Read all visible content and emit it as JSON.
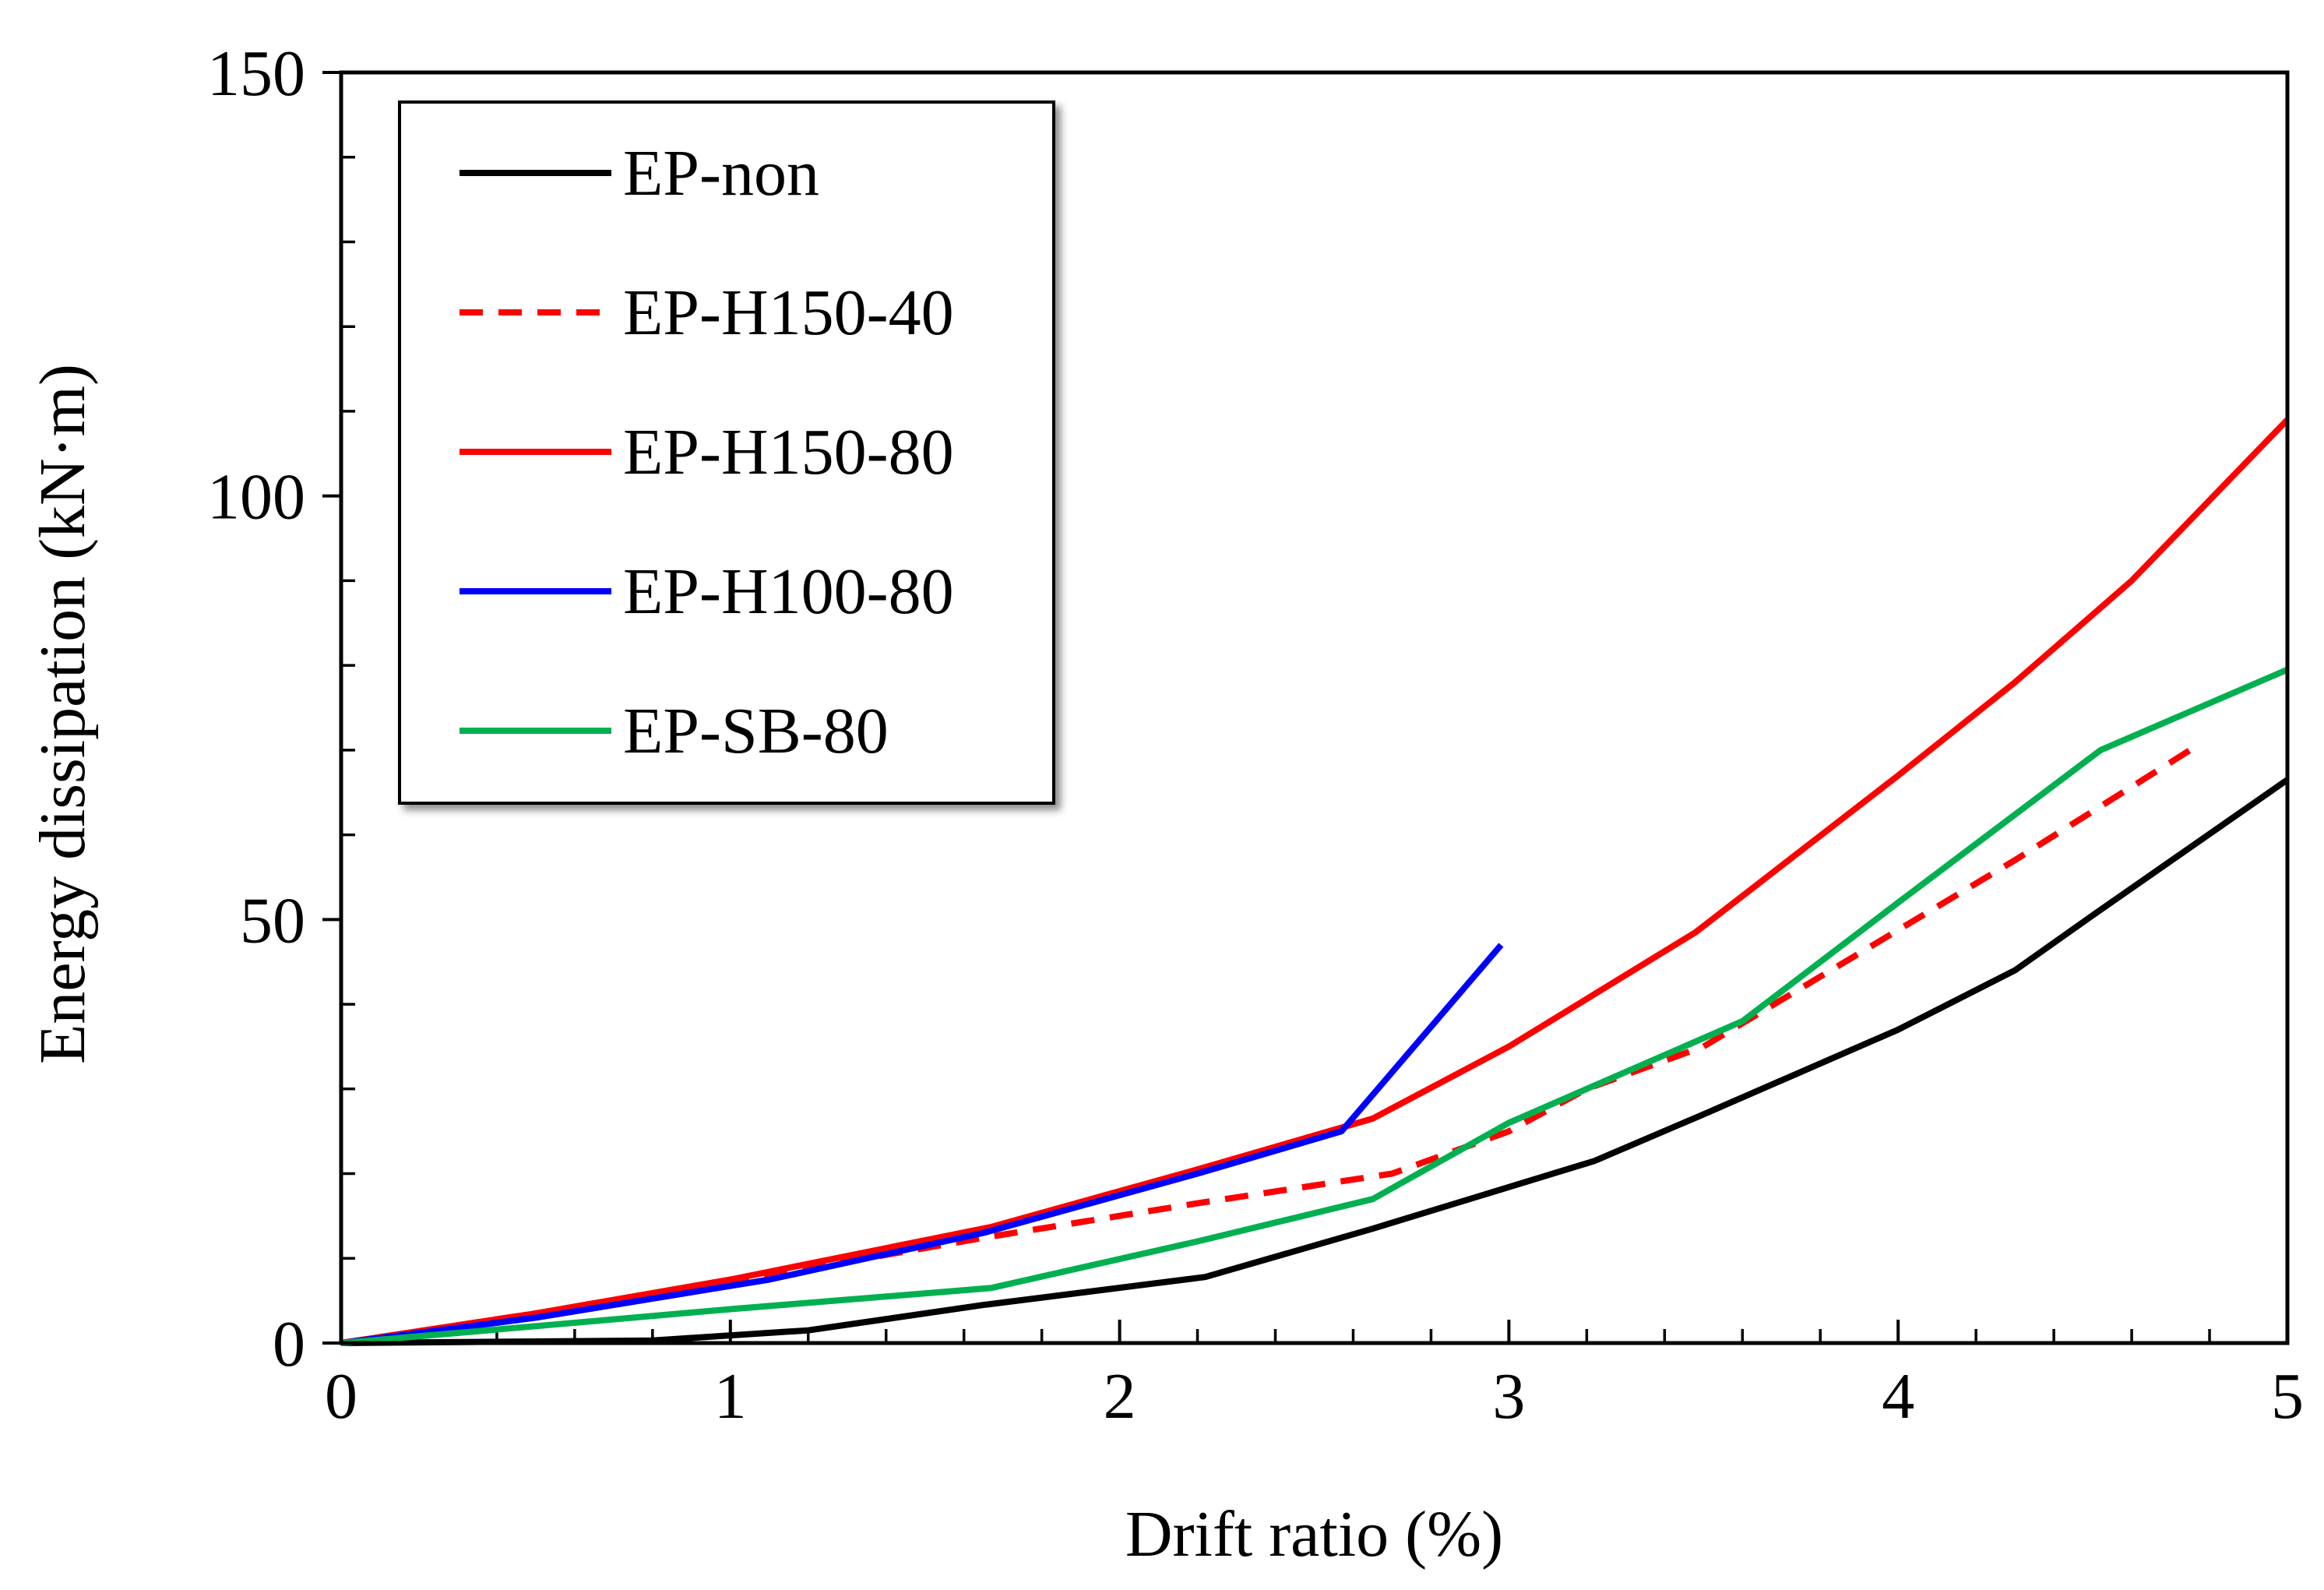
{
  "chart_data": {
    "type": "line",
    "title": "",
    "xlabel": "Drift ratio (%)",
    "ylabel": "Energy dissipation (kN·m)",
    "xlim": [
      0,
      5
    ],
    "ylim": [
      0,
      150
    ],
    "x_ticks": [
      0,
      1,
      2,
      3,
      4,
      5
    ],
    "x_tick_labels": [
      "0",
      "1",
      "2",
      "3",
      "4",
      "5"
    ],
    "y_ticks": [
      0,
      50,
      100,
      150
    ],
    "y_tick_labels": [
      "0",
      "50",
      "100",
      "150"
    ],
    "x_minor_step": 0.2,
    "y_minor_step": 10,
    "grid": false,
    "legend_position": "top-left",
    "series": [
      {
        "name": "EP-non",
        "color": "#000000",
        "dash": "solid",
        "x": [
          0,
          0.8,
          1.2,
          1.65,
          2.22,
          2.65,
          3.22,
          3.5,
          4.0,
          4.3,
          4.5,
          5.0
        ],
        "y": [
          0,
          0.3,
          1.5,
          4.5,
          7.8,
          13.5,
          21.5,
          27.0,
          37.0,
          44.0,
          50.5,
          66.5
        ]
      },
      {
        "name": "EP-H150-40",
        "color": "#ff0000",
        "dash": "dashed",
        "x": [
          0,
          0.5,
          1.0,
          1.66,
          2.2,
          2.7,
          3.0,
          3.2,
          3.5,
          4.3,
          4.75
        ],
        "y": [
          0,
          3.5,
          7.2,
          12.5,
          16.5,
          20.0,
          25.0,
          30.0,
          35.0,
          57.0,
          70.0
        ]
      },
      {
        "name": "EP-H150-80",
        "color": "#ff0000",
        "dash": "solid",
        "x": [
          0,
          0.5,
          1.0,
          1.67,
          2.2,
          2.65,
          3.0,
          3.48,
          4.0,
          4.3,
          4.6,
          5.0
        ],
        "y": [
          0,
          3.5,
          7.5,
          13.7,
          20.5,
          26.5,
          35.0,
          48.5,
          67.0,
          78.0,
          90.0,
          109.0
        ]
      },
      {
        "name": "EP-H100-80",
        "color": "#0000ff",
        "dash": "solid",
        "x": [
          0,
          0.5,
          1.1,
          1.65,
          2.2,
          2.57,
          2.98
        ],
        "y": [
          0,
          3.0,
          7.5,
          13.0,
          20.0,
          25.0,
          47.0
        ]
      },
      {
        "name": "EP-SB-80",
        "color": "#00b050",
        "dash": "solid",
        "x": [
          0,
          0.5,
          1.0,
          1.67,
          2.2,
          2.65,
          3.0,
          3.6,
          4.0,
          4.52,
          5.0
        ],
        "y": [
          0,
          2.0,
          4.0,
          6.5,
          12.0,
          17.0,
          26.0,
          38.0,
          52.0,
          70.0,
          79.5
        ]
      }
    ]
  }
}
